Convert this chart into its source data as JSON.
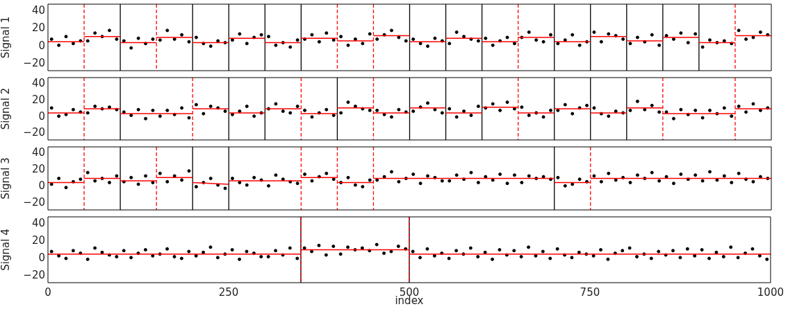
{
  "chart_data": [
    {
      "type": "scatter",
      "ylabel": "Signal 1",
      "xlim": [
        0,
        1000
      ],
      "xticks": [
        0,
        250,
        500,
        750,
        1000
      ],
      "ylim": [
        -28,
        48
      ],
      "yticks": [
        -20,
        0,
        20,
        40
      ],
      "tick_labels": "y",
      "grid": false,
      "legend": false,
      "series": [
        {
          "type": "scatter",
          "color": "#000000",
          "marker": "circle",
          "x": [
            5,
            15,
            25,
            35,
            45,
            55,
            65,
            75,
            85,
            95,
            105,
            115,
            125,
            135,
            145,
            155,
            165,
            175,
            185,
            195,
            205,
            215,
            225,
            235,
            245,
            255,
            265,
            275,
            285,
            295,
            305,
            315,
            325,
            335,
            345,
            355,
            365,
            375,
            385,
            395,
            405,
            415,
            425,
            435,
            445,
            455,
            465,
            475,
            485,
            495,
            505,
            515,
            525,
            535,
            545,
            555,
            565,
            575,
            585,
            595,
            605,
            615,
            625,
            635,
            645,
            655,
            665,
            675,
            685,
            695,
            705,
            715,
            725,
            735,
            745,
            755,
            765,
            775,
            785,
            795,
            805,
            815,
            825,
            835,
            845,
            855,
            865,
            875,
            885,
            895,
            905,
            915,
            925,
            935,
            945,
            955,
            965,
            975,
            985,
            995
          ],
          "values": [
            8,
            1,
            11,
            3,
            6,
            6,
            15,
            11,
            18,
            8,
            6,
            -2,
            9,
            3,
            8,
            7,
            18,
            8,
            13,
            5,
            10,
            3,
            0,
            6,
            4,
            7,
            14,
            3,
            10,
            13,
            11,
            1,
            4,
            -1,
            7,
            8,
            13,
            5,
            15,
            7,
            11,
            1,
            8,
            3,
            14,
            8,
            13,
            18,
            10,
            6,
            8,
            3,
            0,
            9,
            6,
            3,
            16,
            11,
            8,
            6,
            9,
            1,
            6,
            10,
            3,
            10,
            16,
            7,
            5,
            13,
            3,
            7,
            13,
            1,
            5,
            16,
            5,
            14,
            12,
            8,
            3,
            10,
            5,
            13,
            1,
            12,
            8,
            15,
            4,
            14,
            -1,
            7,
            4,
            6,
            3,
            18,
            8,
            10,
            16,
            13
          ]
        },
        {
          "type": "line",
          "color": "#ff0000",
          "x": [
            0,
            50
          ],
          "values": [
            5,
            5
          ]
        },
        {
          "type": "line",
          "color": "#ff0000",
          "x": [
            50,
            100
          ],
          "values": [
            11,
            11
          ]
        },
        {
          "type": "line",
          "color": "#ff0000",
          "x": [
            100,
            150
          ],
          "values": [
            4,
            4
          ]
        },
        {
          "type": "line",
          "color": "#ff0000",
          "x": [
            150,
            200
          ],
          "values": [
            10,
            10
          ]
        },
        {
          "type": "line",
          "color": "#ff0000",
          "x": [
            200,
            250
          ],
          "values": [
            4,
            4
          ]
        },
        {
          "type": "line",
          "color": "#ff0000",
          "x": [
            250,
            300
          ],
          "values": [
            9,
            9
          ]
        },
        {
          "type": "line",
          "color": "#ff0000",
          "x": [
            300,
            350
          ],
          "values": [
            4,
            4
          ]
        },
        {
          "type": "line",
          "color": "#ff0000",
          "x": [
            350,
            400
          ],
          "values": [
            9,
            9
          ]
        },
        {
          "type": "line",
          "color": "#ff0000",
          "x": [
            400,
            450
          ],
          "values": [
            6,
            6
          ]
        },
        {
          "type": "line",
          "color": "#ff0000",
          "x": [
            450,
            500
          ],
          "values": [
            12,
            12
          ]
        },
        {
          "type": "line",
          "color": "#ff0000",
          "x": [
            500,
            550
          ],
          "values": [
            5,
            5
          ]
        },
        {
          "type": "line",
          "color": "#ff0000",
          "x": [
            550,
            600
          ],
          "values": [
            9,
            9
          ]
        },
        {
          "type": "line",
          "color": "#ff0000",
          "x": [
            600,
            650
          ],
          "values": [
            5,
            5
          ]
        },
        {
          "type": "line",
          "color": "#ff0000",
          "x": [
            650,
            700
          ],
          "values": [
            10,
            10
          ]
        },
        {
          "type": "line",
          "color": "#ff0000",
          "x": [
            700,
            750
          ],
          "values": [
            5,
            5
          ]
        },
        {
          "type": "line",
          "color": "#ff0000",
          "x": [
            750,
            800
          ],
          "values": [
            11,
            11
          ]
        },
        {
          "type": "line",
          "color": "#ff0000",
          "x": [
            800,
            850
          ],
          "values": [
            6,
            6
          ]
        },
        {
          "type": "line",
          "color": "#ff0000",
          "x": [
            850,
            900
          ],
          "values": [
            10,
            10
          ]
        },
        {
          "type": "line",
          "color": "#ff0000",
          "x": [
            900,
            950
          ],
          "values": [
            4,
            4
          ]
        },
        {
          "type": "line",
          "color": "#ff0000",
          "x": [
            950,
            1000
          ],
          "values": [
            12,
            12
          ]
        }
      ],
      "ref_lines": [
        {
          "axis": "x",
          "value": 100,
          "color": "#000000",
          "line_style": "solid"
        },
        {
          "axis": "x",
          "value": 200,
          "color": "#000000",
          "line_style": "solid"
        },
        {
          "axis": "x",
          "value": 250,
          "color": "#000000",
          "line_style": "solid"
        },
        {
          "axis": "x",
          "value": 300,
          "color": "#000000",
          "line_style": "solid"
        },
        {
          "axis": "x",
          "value": 350,
          "color": "#000000",
          "line_style": "solid"
        },
        {
          "axis": "x",
          "value": 500,
          "color": "#000000",
          "line_style": "solid"
        },
        {
          "axis": "x",
          "value": 550,
          "color": "#000000",
          "line_style": "solid"
        },
        {
          "axis": "x",
          "value": 600,
          "color": "#000000",
          "line_style": "solid"
        },
        {
          "axis": "x",
          "value": 700,
          "color": "#000000",
          "line_style": "solid"
        },
        {
          "axis": "x",
          "value": 750,
          "color": "#000000",
          "line_style": "solid"
        },
        {
          "axis": "x",
          "value": 800,
          "color": "#000000",
          "line_style": "solid"
        },
        {
          "axis": "x",
          "value": 850,
          "color": "#000000",
          "line_style": "solid"
        },
        {
          "axis": "x",
          "value": 900,
          "color": "#000000",
          "line_style": "solid"
        },
        {
          "axis": "x",
          "value": 50,
          "color": "#ff0000",
          "line_style": "dashed"
        },
        {
          "axis": "x",
          "value": 150,
          "color": "#ff0000",
          "line_style": "dashed"
        },
        {
          "axis": "x",
          "value": 400,
          "color": "#ff0000",
          "line_style": "dashed"
        },
        {
          "axis": "x",
          "value": 450,
          "color": "#ff0000",
          "line_style": "dashed"
        },
        {
          "axis": "x",
          "value": 650,
          "color": "#ff0000",
          "line_style": "dashed"
        },
        {
          "axis": "x",
          "value": 950,
          "color": "#ff0000",
          "line_style": "dashed"
        }
      ]
    },
    {
      "type": "scatter",
      "ylabel": "Signal 2",
      "xlim": [
        0,
        1000
      ],
      "xticks": [
        0,
        250,
        500,
        750,
        1000
      ],
      "ylim": [
        -28,
        48
      ],
      "yticks": [
        -20,
        0,
        20,
        40
      ],
      "tick_labels": "y",
      "grid": false,
      "legend": false,
      "series": [
        {
          "type": "scatter",
          "color": "#000000",
          "marker": "circle",
          "x": [
            5,
            15,
            25,
            35,
            45,
            55,
            65,
            75,
            85,
            95,
            105,
            115,
            125,
            135,
            145,
            155,
            165,
            175,
            185,
            195,
            205,
            215,
            225,
            235,
            245,
            255,
            265,
            275,
            285,
            295,
            305,
            315,
            325,
            335,
            345,
            355,
            365,
            375,
            385,
            395,
            405,
            415,
            425,
            435,
            445,
            455,
            465,
            475,
            485,
            495,
            505,
            515,
            525,
            535,
            545,
            555,
            565,
            575,
            585,
            595,
            605,
            615,
            625,
            635,
            645,
            655,
            665,
            675,
            685,
            695,
            705,
            715,
            725,
            735,
            745,
            755,
            765,
            775,
            785,
            795,
            805,
            815,
            825,
            835,
            845,
            855,
            865,
            875,
            885,
            895,
            905,
            915,
            925,
            935,
            945,
            955,
            965,
            975,
            985,
            995
          ],
          "values": [
            11,
            1,
            3,
            9,
            6,
            5,
            13,
            10,
            12,
            9,
            6,
            2,
            9,
            -2,
            8,
            1,
            8,
            3,
            11,
            -1,
            15,
            4,
            13,
            11,
            7,
            3,
            7,
            13,
            1,
            5,
            10,
            16,
            7,
            5,
            13,
            8,
            0,
            5,
            9,
            2,
            5,
            18,
            13,
            10,
            8,
            8,
            3,
            0,
            9,
            6,
            7,
            12,
            17,
            9,
            5,
            10,
            0,
            7,
            2,
            13,
            11,
            16,
            8,
            18,
            10,
            12,
            2,
            5,
            0,
            8,
            8,
            15,
            4,
            11,
            14,
            11,
            4,
            1,
            7,
            5,
            8,
            19,
            9,
            14,
            6,
            6,
            -2,
            9,
            3,
            8,
            -1,
            8,
            4,
            11,
            1,
            13,
            6,
            16,
            8,
            11
          ]
        },
        {
          "type": "line",
          "color": "#ff0000",
          "x": [
            0,
            50
          ],
          "values": [
            5,
            5
          ]
        },
        {
          "type": "line",
          "color": "#ff0000",
          "x": [
            50,
            100
          ],
          "values": [
            10,
            10
          ]
        },
        {
          "type": "line",
          "color": "#ff0000",
          "x": [
            100,
            200
          ],
          "values": [
            4,
            4
          ]
        },
        {
          "type": "line",
          "color": "#ff0000",
          "x": [
            200,
            250
          ],
          "values": [
            10,
            10
          ]
        },
        {
          "type": "line",
          "color": "#ff0000",
          "x": [
            250,
            300
          ],
          "values": [
            5,
            5
          ]
        },
        {
          "type": "line",
          "color": "#ff0000",
          "x": [
            300,
            350
          ],
          "values": [
            10,
            10
          ]
        },
        {
          "type": "line",
          "color": "#ff0000",
          "x": [
            350,
            400
          ],
          "values": [
            4,
            4
          ]
        },
        {
          "type": "line",
          "color": "#ff0000",
          "x": [
            400,
            450
          ],
          "values": [
            11,
            11
          ]
        },
        {
          "type": "line",
          "color": "#ff0000",
          "x": [
            450,
            500
          ],
          "values": [
            5,
            5
          ]
        },
        {
          "type": "line",
          "color": "#ff0000",
          "x": [
            500,
            550
          ],
          "values": [
            11,
            11
          ]
        },
        {
          "type": "line",
          "color": "#ff0000",
          "x": [
            550,
            600
          ],
          "values": [
            5,
            5
          ]
        },
        {
          "type": "line",
          "color": "#ff0000",
          "x": [
            600,
            650
          ],
          "values": [
            12,
            12
          ]
        },
        {
          "type": "line",
          "color": "#ff0000",
          "x": [
            650,
            700
          ],
          "values": [
            5,
            5
          ]
        },
        {
          "type": "line",
          "color": "#ff0000",
          "x": [
            700,
            750
          ],
          "values": [
            10,
            10
          ]
        },
        {
          "type": "line",
          "color": "#ff0000",
          "x": [
            750,
            800
          ],
          "values": [
            5,
            5
          ]
        },
        {
          "type": "line",
          "color": "#ff0000",
          "x": [
            800,
            850
          ],
          "values": [
            11,
            11
          ]
        },
        {
          "type": "line",
          "color": "#ff0000",
          "x": [
            850,
            950
          ],
          "values": [
            4,
            4
          ]
        },
        {
          "type": "line",
          "color": "#ff0000",
          "x": [
            950,
            1000
          ],
          "values": [
            10,
            10
          ]
        }
      ],
      "ref_lines": [
        {
          "axis": "x",
          "value": 100,
          "color": "#000000",
          "line_style": "solid"
        },
        {
          "axis": "x",
          "value": 250,
          "color": "#000000",
          "line_style": "solid"
        },
        {
          "axis": "x",
          "value": 300,
          "color": "#000000",
          "line_style": "solid"
        },
        {
          "axis": "x",
          "value": 400,
          "color": "#000000",
          "line_style": "solid"
        },
        {
          "axis": "x",
          "value": 500,
          "color": "#000000",
          "line_style": "solid"
        },
        {
          "axis": "x",
          "value": 550,
          "color": "#000000",
          "line_style": "solid"
        },
        {
          "axis": "x",
          "value": 600,
          "color": "#000000",
          "line_style": "solid"
        },
        {
          "axis": "x",
          "value": 700,
          "color": "#000000",
          "line_style": "solid"
        },
        {
          "axis": "x",
          "value": 750,
          "color": "#000000",
          "line_style": "solid"
        },
        {
          "axis": "x",
          "value": 800,
          "color": "#000000",
          "line_style": "solid"
        },
        {
          "axis": "x",
          "value": 50,
          "color": "#ff0000",
          "line_style": "dashed"
        },
        {
          "axis": "x",
          "value": 200,
          "color": "#ff0000",
          "line_style": "dashed"
        },
        {
          "axis": "x",
          "value": 350,
          "color": "#ff0000",
          "line_style": "dashed"
        },
        {
          "axis": "x",
          "value": 450,
          "color": "#ff0000",
          "line_style": "dashed"
        },
        {
          "axis": "x",
          "value": 650,
          "color": "#ff0000",
          "line_style": "dashed"
        },
        {
          "axis": "x",
          "value": 850,
          "color": "#ff0000",
          "line_style": "dashed"
        },
        {
          "axis": "x",
          "value": 950,
          "color": "#ff0000",
          "line_style": "dashed"
        }
      ]
    },
    {
      "type": "scatter",
      "ylabel": "Signal 3",
      "xlim": [
        0,
        1000
      ],
      "xticks": [
        0,
        250,
        500,
        750,
        1000
      ],
      "ylim": [
        -28,
        48
      ],
      "yticks": [
        -20,
        0,
        20,
        40
      ],
      "tick_labels": "y",
      "grid": false,
      "legend": false,
      "series": [
        {
          "type": "scatter",
          "color": "#000000",
          "marker": "circle",
          "x": [
            5,
            15,
            25,
            35,
            45,
            55,
            65,
            75,
            85,
            95,
            105,
            115,
            125,
            135,
            145,
            155,
            165,
            175,
            185,
            195,
            205,
            215,
            225,
            235,
            245,
            255,
            265,
            275,
            285,
            295,
            305,
            315,
            325,
            335,
            345,
            355,
            365,
            375,
            385,
            395,
            405,
            415,
            425,
            435,
            445,
            455,
            465,
            475,
            485,
            495,
            505,
            515,
            525,
            535,
            545,
            555,
            565,
            575,
            585,
            595,
            605,
            615,
            625,
            635,
            645,
            655,
            665,
            675,
            685,
            695,
            705,
            715,
            725,
            735,
            745,
            755,
            765,
            775,
            785,
            795,
            805,
            815,
            825,
            835,
            845,
            855,
            865,
            875,
            885,
            895,
            905,
            915,
            925,
            935,
            945,
            955,
            965,
            975,
            985,
            995
          ],
          "values": [
            3,
            10,
            -1,
            6,
            9,
            17,
            7,
            10,
            5,
            13,
            6,
            11,
            3,
            13,
            5,
            16,
            6,
            13,
            8,
            19,
            0,
            5,
            10,
            2,
            -2,
            10,
            5,
            2,
            11,
            8,
            1,
            14,
            9,
            6,
            4,
            15,
            7,
            12,
            16,
            9,
            5,
            11,
            2,
            0,
            8,
            8,
            12,
            18,
            6,
            10,
            15,
            4,
            13,
            11,
            7,
            7,
            14,
            9,
            17,
            5,
            12,
            8,
            15,
            4,
            14,
            5,
            13,
            10,
            12,
            9,
            11,
            1,
            3,
            9,
            6,
            13,
            6,
            16,
            8,
            11,
            5,
            14,
            10,
            17,
            7,
            12,
            4,
            15,
            9,
            14,
            7,
            18,
            8,
            13,
            5,
            16,
            9,
            6,
            12,
            10
          ]
        },
        {
          "type": "line",
          "color": "#ff0000",
          "x": [
            0,
            50
          ],
          "values": [
            5,
            5
          ]
        },
        {
          "type": "line",
          "color": "#ff0000",
          "x": [
            50,
            100
          ],
          "values": [
            10,
            10
          ]
        },
        {
          "type": "line",
          "color": "#ff0000",
          "x": [
            100,
            150
          ],
          "values": [
            7,
            7
          ]
        },
        {
          "type": "line",
          "color": "#ff0000",
          "x": [
            150,
            200
          ],
          "values": [
            11,
            11
          ]
        },
        {
          "type": "line",
          "color": "#ff0000",
          "x": [
            200,
            250
          ],
          "values": [
            5,
            3
          ]
        },
        {
          "type": "line",
          "color": "#ff0000",
          "x": [
            250,
            350
          ],
          "values": [
            7,
            7
          ]
        },
        {
          "type": "line",
          "color": "#ff0000",
          "x": [
            350,
            400
          ],
          "values": [
            11,
            11
          ]
        },
        {
          "type": "line",
          "color": "#ff0000",
          "x": [
            400,
            450
          ],
          "values": [
            5,
            5
          ]
        },
        {
          "type": "line",
          "color": "#ff0000",
          "x": [
            450,
            700
          ],
          "values": [
            10,
            10
          ]
        },
        {
          "type": "line",
          "color": "#ff0000",
          "x": [
            700,
            750
          ],
          "values": [
            5,
            5
          ]
        },
        {
          "type": "line",
          "color": "#ff0000",
          "x": [
            750,
            1000
          ],
          "values": [
            10,
            10
          ]
        }
      ],
      "ref_lines": [
        {
          "axis": "x",
          "value": 100,
          "color": "#000000",
          "line_style": "solid"
        },
        {
          "axis": "x",
          "value": 200,
          "color": "#000000",
          "line_style": "solid"
        },
        {
          "axis": "x",
          "value": 250,
          "color": "#000000",
          "line_style": "solid"
        },
        {
          "axis": "x",
          "value": 700,
          "color": "#000000",
          "line_style": "solid"
        },
        {
          "axis": "x",
          "value": 50,
          "color": "#ff0000",
          "line_style": "dashed"
        },
        {
          "axis": "x",
          "value": 150,
          "color": "#ff0000",
          "line_style": "dashed"
        },
        {
          "axis": "x",
          "value": 350,
          "color": "#ff0000",
          "line_style": "dashed"
        },
        {
          "axis": "x",
          "value": 400,
          "color": "#ff0000",
          "line_style": "dashed"
        },
        {
          "axis": "x",
          "value": 450,
          "color": "#ff0000",
          "line_style": "dashed"
        },
        {
          "axis": "x",
          "value": 750,
          "color": "#ff0000",
          "line_style": "dashed"
        }
      ]
    },
    {
      "type": "scatter",
      "ylabel": "Signal 4",
      "xlabel": "index",
      "xlim": [
        0,
        1000
      ],
      "xticks": [
        0,
        250,
        500,
        750,
        1000
      ],
      "ylim": [
        -28,
        48
      ],
      "yticks": [
        -20,
        0,
        20,
        40
      ],
      "grid": false,
      "legend": false,
      "series": [
        {
          "type": "scatter",
          "color": "#000000",
          "marker": "circle",
          "x": [
            5,
            15,
            25,
            35,
            45,
            55,
            65,
            75,
            85,
            95,
            105,
            115,
            125,
            135,
            145,
            155,
            165,
            175,
            185,
            195,
            205,
            215,
            225,
            235,
            245,
            255,
            265,
            275,
            285,
            295,
            305,
            315,
            325,
            335,
            345,
            355,
            365,
            375,
            385,
            395,
            405,
            415,
            425,
            435,
            445,
            455,
            465,
            475,
            485,
            495,
            505,
            515,
            525,
            535,
            545,
            555,
            565,
            575,
            585,
            595,
            605,
            615,
            625,
            635,
            645,
            655,
            665,
            675,
            685,
            695,
            705,
            715,
            725,
            735,
            745,
            755,
            765,
            775,
            785,
            795,
            805,
            815,
            825,
            835,
            845,
            855,
            865,
            875,
            885,
            895,
            905,
            915,
            925,
            935,
            945,
            955,
            965,
            975,
            985,
            995
          ],
          "values": [
            8,
            3,
            0,
            9,
            6,
            -1,
            12,
            7,
            4,
            2,
            9,
            1,
            6,
            10,
            3,
            5,
            11,
            2,
            0,
            8,
            3,
            7,
            13,
            1,
            5,
            10,
            -1,
            8,
            6,
            2,
            2,
            9,
            4,
            12,
            0,
            12,
            8,
            15,
            4,
            14,
            5,
            13,
            10,
            12,
            9,
            16,
            6,
            8,
            14,
            11,
            8,
            1,
            11,
            3,
            6,
            0,
            9,
            5,
            12,
            2,
            7,
            -1,
            10,
            4,
            9,
            2,
            13,
            3,
            8,
            0,
            11,
            4,
            1,
            7,
            5,
            3,
            10,
            -1,
            6,
            9,
            12,
            2,
            5,
            0,
            8,
            4,
            9,
            1,
            11,
            3,
            10,
            0,
            7,
            2,
            13,
            1,
            6,
            11,
            3,
            -1
          ]
        },
        {
          "type": "line",
          "color": "#ff0000",
          "x": [
            0,
            350
          ],
          "values": [
            5,
            5
          ]
        },
        {
          "type": "line",
          "color": "#ff0000",
          "x": [
            350,
            500
          ],
          "values": [
            10,
            10
          ]
        },
        {
          "type": "line",
          "color": "#ff0000",
          "x": [
            500,
            1000
          ],
          "values": [
            5,
            5
          ]
        }
      ],
      "ref_lines": [
        {
          "axis": "x",
          "value": 350,
          "color": "#000000",
          "line_style": "solid"
        },
        {
          "axis": "x",
          "value": 500,
          "color": "#000000",
          "line_style": "solid"
        },
        {
          "axis": "x",
          "value": 350,
          "color": "#ff0000",
          "line_style": "dashed"
        },
        {
          "axis": "x",
          "value": 500,
          "color": "#ff0000",
          "line_style": "dashed"
        }
      ]
    }
  ]
}
